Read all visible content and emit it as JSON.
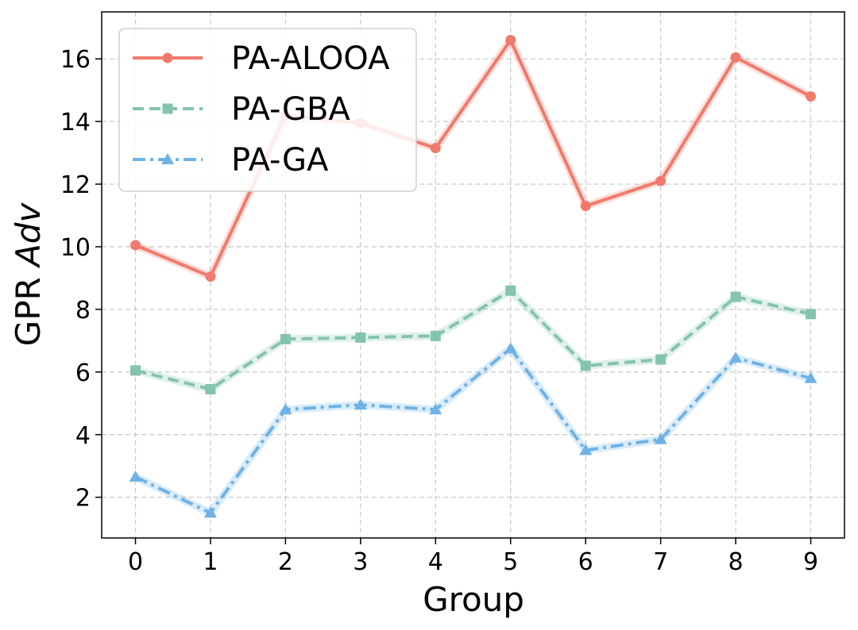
{
  "chart_data": {
    "type": "line",
    "title": "",
    "xlabel": "Group",
    "ylabel_prefix": "GPR ",
    "ylabel_italic": "Adv",
    "x": [
      0,
      1,
      2,
      3,
      4,
      5,
      6,
      7,
      8,
      9
    ],
    "xlim": [
      -0.45,
      9.45
    ],
    "ylim": [
      0.7,
      17.5
    ],
    "yticks": [
      2,
      4,
      6,
      8,
      10,
      12,
      14,
      16
    ],
    "grid": true,
    "legend_position": "top-left",
    "series": [
      {
        "name": "PA-ALOOA",
        "color": "#f07a6c",
        "linestyle": "solid",
        "marker": "circle",
        "values": [
          10.05,
          9.05,
          14.2,
          13.95,
          13.15,
          16.6,
          11.3,
          12.1,
          16.05,
          14.8
        ]
      },
      {
        "name": "PA-GBA",
        "color": "#85c3b1",
        "linestyle": "dashed",
        "marker": "square",
        "values": [
          6.05,
          5.45,
          7.05,
          7.1,
          7.15,
          8.6,
          6.2,
          6.4,
          8.4,
          7.85
        ]
      },
      {
        "name": "PA-GA",
        "color": "#6fb3e6",
        "linestyle": "dashdot",
        "marker": "triangle",
        "values": [
          2.65,
          1.5,
          4.8,
          4.95,
          4.8,
          6.75,
          3.5,
          3.85,
          6.45,
          5.8
        ]
      }
    ]
  }
}
